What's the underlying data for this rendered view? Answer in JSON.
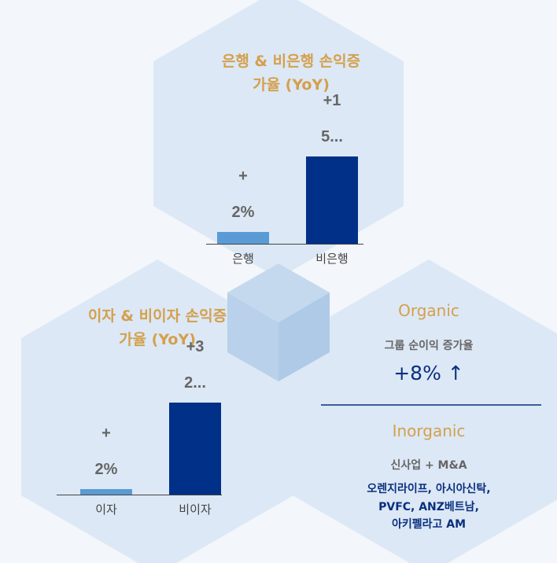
{
  "chart_data": [
    {
      "type": "bar",
      "title": "은행 & 비은행 손익증가율 (YoY)",
      "categories": [
        "은행",
        "비은행"
      ],
      "values": [
        2,
        15
      ],
      "value_labels": [
        "+2%",
        "+15..."
      ],
      "colors": [
        "#5b9bd5",
        "#003087"
      ],
      "ylim": [
        0,
        15
      ]
    },
    {
      "type": "bar",
      "title": "이자 & 비이자 손익증가율 (YoY)",
      "categories": [
        "이자",
        "비이자"
      ],
      "values": [
        2,
        32
      ],
      "value_labels": [
        "+2%",
        "+32..."
      ],
      "colors": [
        "#5b9bd5",
        "#003087"
      ],
      "ylim": [
        0,
        32
      ]
    }
  ],
  "organic": {
    "title": "Organic",
    "subtitle": "그룹 순이익 증가율",
    "value": "+8% ↑"
  },
  "inorganic": {
    "title": "Inorganic",
    "subtitle": "신사업 + M&A",
    "lines": [
      "오렌지라이프, 아시아신탁,",
      "PVFC, ANZ베트남,",
      "아키펠라고 AM"
    ]
  }
}
